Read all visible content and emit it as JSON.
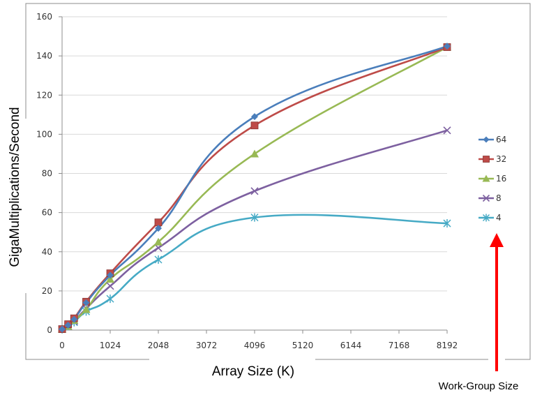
{
  "chart_data": {
    "type": "line",
    "xlabel": "Array Size (K)",
    "ylabel": "GigaMultiplications/Second",
    "x_ticks": [
      0,
      1024,
      2048,
      3072,
      4096,
      5120,
      6144,
      7168,
      8192
    ],
    "y_ticks": [
      0,
      20,
      40,
      60,
      80,
      100,
      120,
      140,
      160
    ],
    "xlim": [
      0,
      8192
    ],
    "ylim": [
      0,
      160
    ],
    "grid": "horizontal",
    "legend_position": "right",
    "series": [
      {
        "name": "64",
        "color": "#4A7EBB",
        "marker": "diamond",
        "x": [
          1,
          128,
          256,
          512,
          1024,
          2048,
          4096,
          8192
        ],
        "y": [
          0.5,
          2.5,
          5.5,
          14,
          28,
          52,
          109,
          145
        ]
      },
      {
        "name": "32",
        "color": "#BE4B48",
        "marker": "square",
        "x": [
          1,
          128,
          256,
          512,
          1024,
          2048,
          4096,
          8192
        ],
        "y": [
          0.5,
          3,
          6,
          14.5,
          29,
          55,
          104.5,
          144.5
        ]
      },
      {
        "name": "16",
        "color": "#98B954",
        "marker": "triangle",
        "x": [
          1,
          128,
          256,
          512,
          1024,
          2048,
          4096,
          8192
        ],
        "y": [
          0.5,
          2,
          5,
          10.5,
          26,
          45,
          90,
          144.5
        ]
      },
      {
        "name": "8",
        "color": "#7D60A0",
        "marker": "x",
        "x": [
          1,
          128,
          256,
          512,
          1024,
          2048,
          4096,
          8192
        ],
        "y": [
          0.5,
          2,
          4.5,
          11,
          22.5,
          42,
          71,
          102
        ]
      },
      {
        "name": "4",
        "color": "#46AAC5",
        "marker": "star",
        "x": [
          1,
          128,
          256,
          512,
          1024,
          2048,
          4096,
          8192
        ],
        "y": [
          0.5,
          2,
          4,
          9.5,
          16,
          36,
          57.5,
          54.5
        ]
      }
    ]
  },
  "annotation": {
    "text": "Work-Group Size",
    "arrow_color": "#FF0000"
  }
}
